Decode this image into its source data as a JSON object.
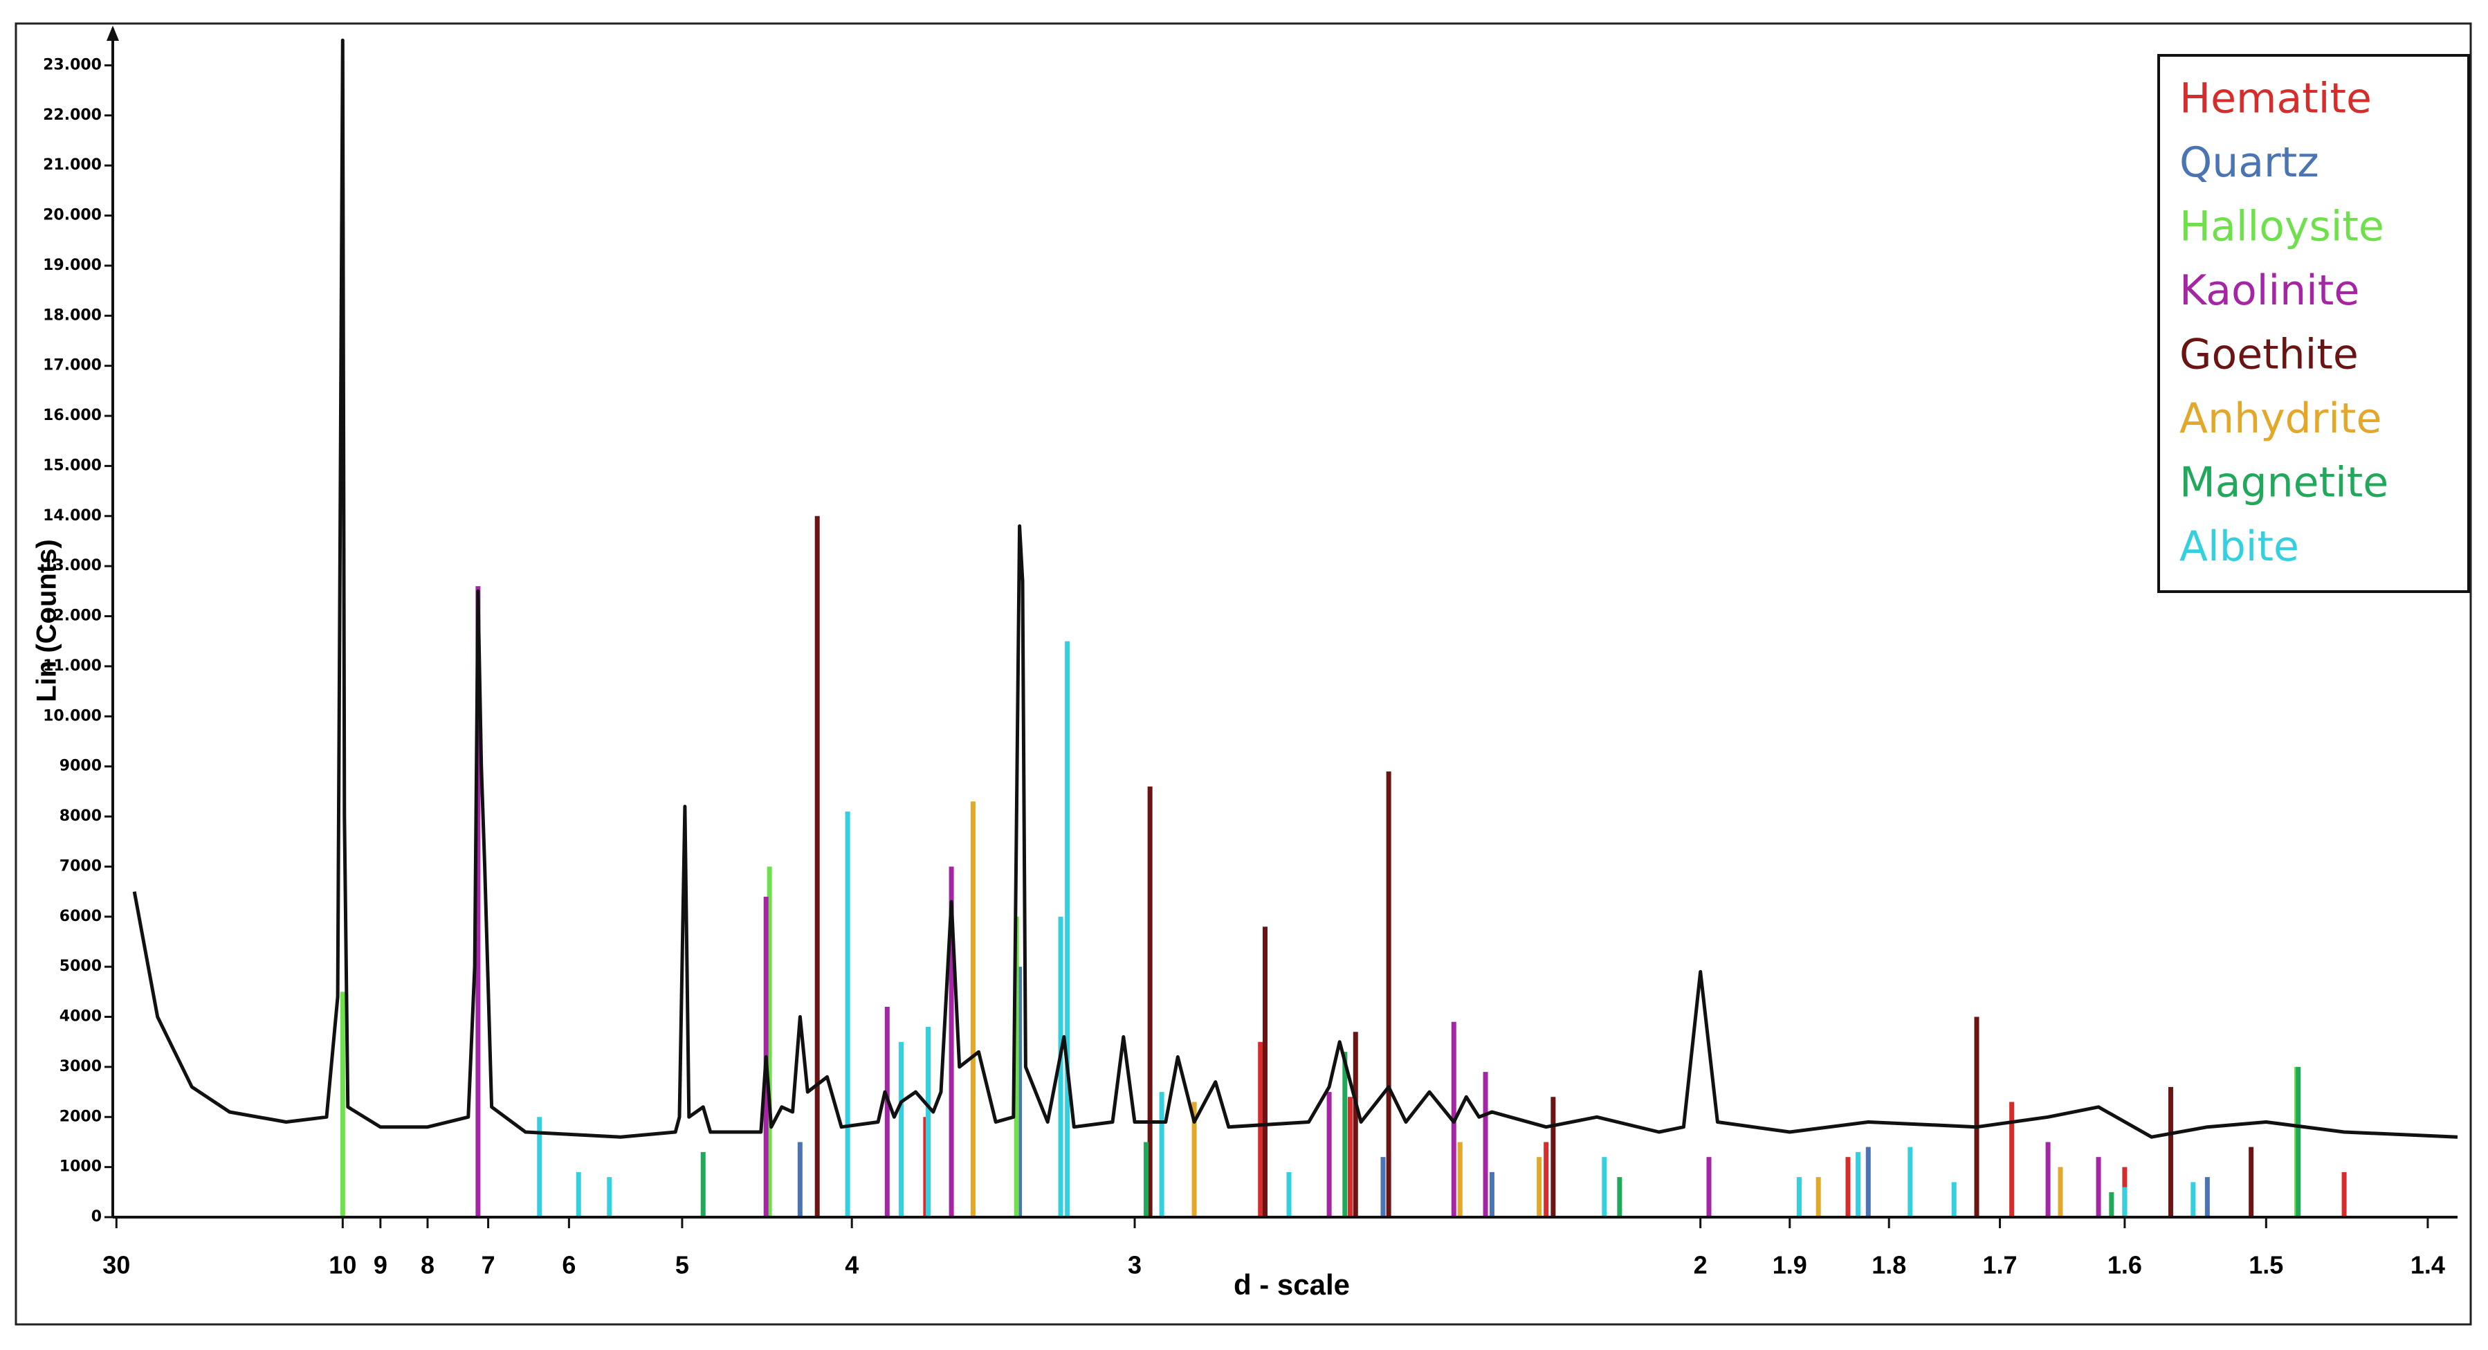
{
  "chart_data": {
    "type": "xrd",
    "ylabel": "Lin (Counts)",
    "xlabel": "d - scale",
    "xscale": "reciprocal",
    "xlim": [
      31,
      1.383
    ],
    "ylim": [
      0,
      23600
    ],
    "xticks": [
      30,
      10,
      9,
      8,
      7,
      6,
      5,
      4,
      3,
      2,
      1.9,
      1.8,
      1.7,
      1.6,
      1.5,
      1.4
    ],
    "yticks": [
      0,
      1000,
      2000,
      3000,
      4000,
      5000,
      6000,
      7000,
      8000,
      9000,
      {
        "value": 10000,
        "label": "10.000"
      },
      {
        "value": 11000,
        "label": "11.000"
      },
      {
        "value": 12000,
        "label": "12.000"
      },
      {
        "value": 13000,
        "label": "13.000"
      },
      {
        "value": 14000,
        "label": "14.000"
      },
      {
        "value": 15000,
        "label": "15.000"
      },
      {
        "value": 16000,
        "label": "16.000"
      },
      {
        "value": 17000,
        "label": "17.000"
      },
      {
        "value": 18000,
        "label": "18.000"
      },
      {
        "value": 19000,
        "label": "19.000"
      },
      {
        "value": 20000,
        "label": "20.000"
      },
      {
        "value": 21000,
        "label": "21.000"
      },
      {
        "value": 22000,
        "label": "22.000"
      },
      {
        "value": 23000,
        "label": "23.000"
      }
    ],
    "legend": "top-right",
    "pattern": {
      "color": "#111111",
      "x": [
        25.9,
        22,
        18,
        15,
        12,
        10.5,
        10.15,
        10.0,
        9.95,
        9.85,
        9,
        8,
        7.3,
        7.2,
        7.15,
        7.1,
        7.05,
        6.95,
        6.5,
        5.5,
        5.05,
        5.02,
        4.98,
        4.95,
        4.85,
        4.8,
        4.48,
        4.45,
        4.42,
        4.36,
        4.3,
        4.26,
        4.22,
        4.12,
        4.05,
        3.88,
        3.85,
        3.81,
        3.78,
        3.72,
        3.65,
        3.62,
        3.58,
        3.55,
        3.48,
        3.42,
        3.36,
        3.34,
        3.33,
        3.32,
        3.25,
        3.2,
        3.17,
        3.06,
        3.03,
        3.0,
        2.92,
        2.89,
        2.85,
        2.8,
        2.77,
        2.6,
        2.56,
        2.54,
        2.5,
        2.45,
        2.42,
        2.38,
        2.34,
        2.32,
        2.3,
        2.28,
        2.2,
        2.13,
        2.05,
        2.02,
        2.0,
        1.98,
        1.9,
        1.82,
        1.72,
        1.66,
        1.62,
        1.58,
        1.54,
        1.5,
        1.45,
        1.383
      ],
      "values": [
        6500,
        4000,
        2600,
        2100,
        1900,
        2000,
        4400,
        23500,
        8000,
        2200,
        1800,
        1800,
        2000,
        5000,
        12500,
        9000,
        7000,
        2200,
        1700,
        1600,
        1700,
        2000,
        8200,
        2000,
        2200,
        1700,
        1700,
        3200,
        1800,
        2200,
        2100,
        4000,
        2500,
        2800,
        1800,
        1900,
        2500,
        2000,
        2300,
        2500,
        2100,
        2500,
        6300,
        3000,
        3300,
        1900,
        2000,
        13800,
        12700,
        3000,
        1900,
        3600,
        1800,
        1900,
        3600,
        1900,
        1900,
        3200,
        1900,
        2700,
        1800,
        1900,
        2600,
        3500,
        1900,
        2600,
        1900,
        2500,
        1900,
        2400,
        2000,
        2100,
        1800,
        2000,
        1700,
        1800,
        4900,
        1900,
        1700,
        1900,
        1800,
        2000,
        2200,
        1600,
        1800,
        1900,
        1700,
        1600
      ]
    },
    "series": [
      {
        "name": "Hematite",
        "color": "#d62c2c",
        "x": [
          3.68,
          2.7,
          2.52,
          2.2,
          1.84,
          1.69,
          1.6,
          1.45
        ],
        "values": [
          2000,
          3500,
          2400,
          1500,
          1200,
          2300,
          1000,
          900
        ]
      },
      {
        "name": "Quartz",
        "color": "#4a74b4",
        "x": [
          4.26,
          3.34,
          2.46,
          2.28,
          1.82,
          1.54
        ],
        "values": [
          1500,
          5000,
          1200,
          900,
          1400,
          800
        ]
      },
      {
        "name": "Halloysite",
        "color": "#6fe04c",
        "x": [
          10.0,
          4.43,
          3.35,
          2.56,
          1.48
        ],
        "values": [
          4500,
          7000,
          6000,
          2000,
          3000
        ]
      },
      {
        "name": "Kaolinite",
        "color": "#a526a5",
        "x": [
          7.15,
          4.45,
          3.84,
          3.58,
          2.56,
          2.34,
          2.29,
          1.99,
          1.66,
          1.62
        ],
        "values": [
          12600,
          6400,
          4200,
          7000,
          2500,
          3900,
          2900,
          1200,
          1500,
          1200
        ]
      },
      {
        "name": "Goethite",
        "color": "#6a1414",
        "x": [
          4.17,
          2.96,
          2.69,
          2.51,
          2.45,
          2.19,
          1.72,
          1.566,
          1.51
        ],
        "values": [
          14000,
          8600,
          5800,
          3700,
          8900,
          2400,
          4000,
          2600,
          1400
        ]
      },
      {
        "name": "Anhydrite",
        "color": "#e3a82a",
        "x": [
          3.5,
          2.85,
          2.33,
          2.21,
          1.87,
          1.65
        ],
        "values": [
          8300,
          2300,
          1500,
          1200,
          800,
          1000
        ]
      },
      {
        "name": "Magnetite",
        "color": "#22a85a",
        "x": [
          4.85,
          2.97,
          2.53,
          2.1,
          1.61,
          1.479
        ],
        "values": [
          1300,
          1500,
          3300,
          800,
          500,
          3000
        ]
      },
      {
        "name": "Albite",
        "color": "#34d0e0",
        "x": [
          6.33,
          5.9,
          5.6,
          4.02,
          3.78,
          3.67,
          3.21,
          3.19,
          2.93,
          2.64,
          2.12,
          1.89,
          1.83,
          1.78,
          1.74,
          1.6,
          1.55
        ],
        "values": [
          2000,
          900,
          800,
          8100,
          3500,
          3800,
          6000,
          11500,
          2500,
          900,
          1200,
          800,
          1300,
          1400,
          700,
          600,
          700
        ]
      }
    ]
  }
}
